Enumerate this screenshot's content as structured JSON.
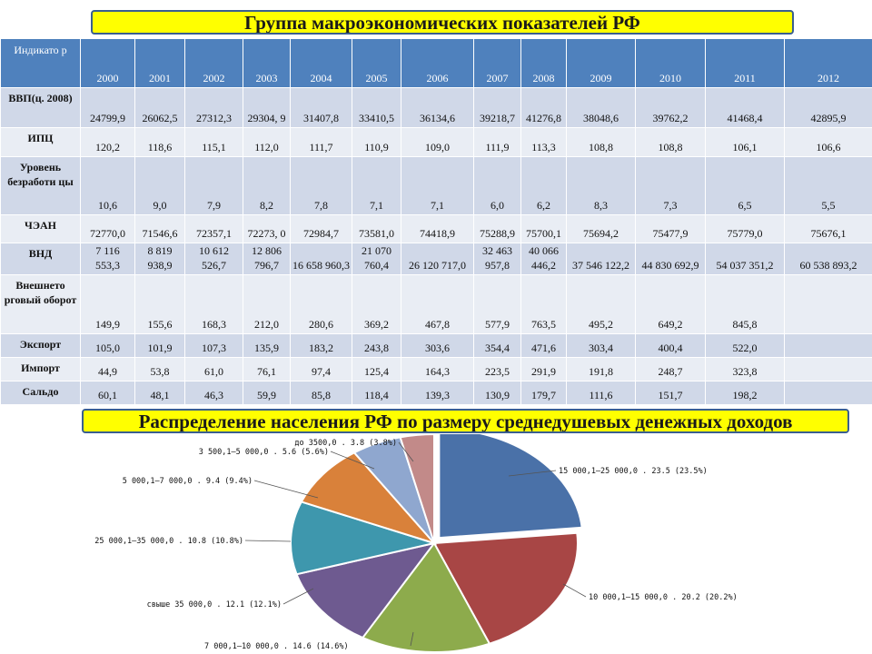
{
  "header": {
    "title": "Группа макроэкономических показателей РФ"
  },
  "table": {
    "corner": "Индикато р",
    "years": [
      "2000",
      "2001",
      "2002",
      "2003",
      "2004",
      "2005",
      "2006",
      "2007",
      "2008",
      "2009",
      "2010",
      "2011",
      "2012"
    ],
    "rows": [
      {
        "label": "ВВП(ц. 2008)",
        "values": [
          "24799,9",
          "26062,5",
          "27312,3",
          "29304, 9",
          "31407,8",
          "33410,5",
          "36134,6",
          "39218,7",
          "41276,8",
          "38048,6",
          "39762,2",
          "41468,4",
          "42895,9"
        ]
      },
      {
        "label": "ИПЦ",
        "values": [
          "120,2",
          "118,6",
          "115,1",
          "112,0",
          "111,7",
          "110,9",
          "109,0",
          "111,9",
          "113,3",
          "108,8",
          "108,8",
          "106,1",
          "106,6"
        ]
      },
      {
        "label": "Уровень безработи цы",
        "values": [
          "10,6",
          "9,0",
          "7,9",
          "8,2",
          "7,8",
          "7,1",
          "7,1",
          "6,0",
          "6,2",
          "8,3",
          "7,3",
          "6,5",
          "5,5"
        ]
      },
      {
        "label": "ЧЭАН",
        "values": [
          "72770,0",
          "71546,6",
          "72357,1",
          "72273, 0",
          "72984,7",
          "73581,0",
          "74418,9",
          "75288,9",
          "75700,1",
          "75694,2",
          "75477,9",
          "75779,0",
          "75676,1"
        ]
      },
      {
        "label": "ВНД",
        "values": [
          "7 116 553,3",
          "8 819 938,9",
          "10 612 526,7",
          "12 806 796,7",
          "16 658 960,3",
          "21 070 760,4",
          "26 120 717,0",
          "32 463 957,8",
          "40 066 446,2",
          "37 546 122,2",
          "44 830 692,9",
          "54 037 351,2",
          "60 538 893,2"
        ]
      },
      {
        "label": "Внешнето рговый оборот",
        "values": [
          "149,9",
          "155,6",
          "168,3",
          "212,0",
          "280,6",
          "369,2",
          "467,8",
          "577,9",
          "763,5",
          "495,2",
          "649,2",
          "845,8",
          ""
        ]
      },
      {
        "label": "Экспорт",
        "values": [
          "105,0",
          "101,9",
          "107,3",
          "135,9",
          "183,2",
          "243,8",
          "303,6",
          "354,4",
          "471,6",
          "303,4",
          "400,4",
          "522,0",
          ""
        ]
      },
      {
        "label": "Импорт",
        "values": [
          "44,9",
          "53,8",
          "61,0",
          "76,1",
          "97,4",
          "125,4",
          "164,3",
          "223,5",
          "291,9",
          "191,8",
          "248,7",
          "323,8",
          ""
        ]
      },
      {
        "label": "Сальдо",
        "values": [
          "60,1",
          "48,1",
          "46,3",
          "59,9",
          "85,8",
          "118,4",
          "139,3",
          "130,9",
          "179,7",
          "111,6",
          "151,7",
          "198,2",
          ""
        ]
      }
    ]
  },
  "pie_title": "Распределение населения РФ по размеру среднедушевых денежных доходов",
  "colors": {
    "title_bg": "#ffff00",
    "title_border": "#3a5f8f",
    "header_bg": "#4f81bd",
    "row_odd": "#d0d8e8",
    "row_even": "#e9edf4"
  },
  "chart_data": {
    "type": "pie",
    "title": "Распределение населения РФ по размеру среднедушевых денежных доходов",
    "slices": [
      {
        "label": "15 000,1–25 000,0 . 23.5 (23.5%)",
        "value": 23.5,
        "color": "#4a71a8"
      },
      {
        "label": "10 000,1–15 000,0 . 20.2 (20.2%)",
        "value": 20.2,
        "color": "#a84645"
      },
      {
        "label": "7 000,1–10 000,0 . 14.6 (14.6%)",
        "value": 14.6,
        "color": "#8dab4c"
      },
      {
        "label": "свыше 35 000,0 . 12.1 (12.1%)",
        "value": 12.1,
        "color": "#6e5a90"
      },
      {
        "label": "25 000,1–35 000,0 . 10.8 (10.8%)",
        "value": 10.8,
        "color": "#3e97ad"
      },
      {
        "label": "5 000,1–7 000,0 . 9.4 (9.4%)",
        "value": 9.4,
        "color": "#d9813a"
      },
      {
        "label": "3 500,1–5 000,0 . 5.6 (5.6%)",
        "value": 5.6,
        "color": "#8fa7cf"
      },
      {
        "label": "до 3500,0 . 3.8 (3.8%)",
        "value": 3.8,
        "color": "#c28a89"
      }
    ],
    "exploded": "15 000,1–25 000,0"
  }
}
